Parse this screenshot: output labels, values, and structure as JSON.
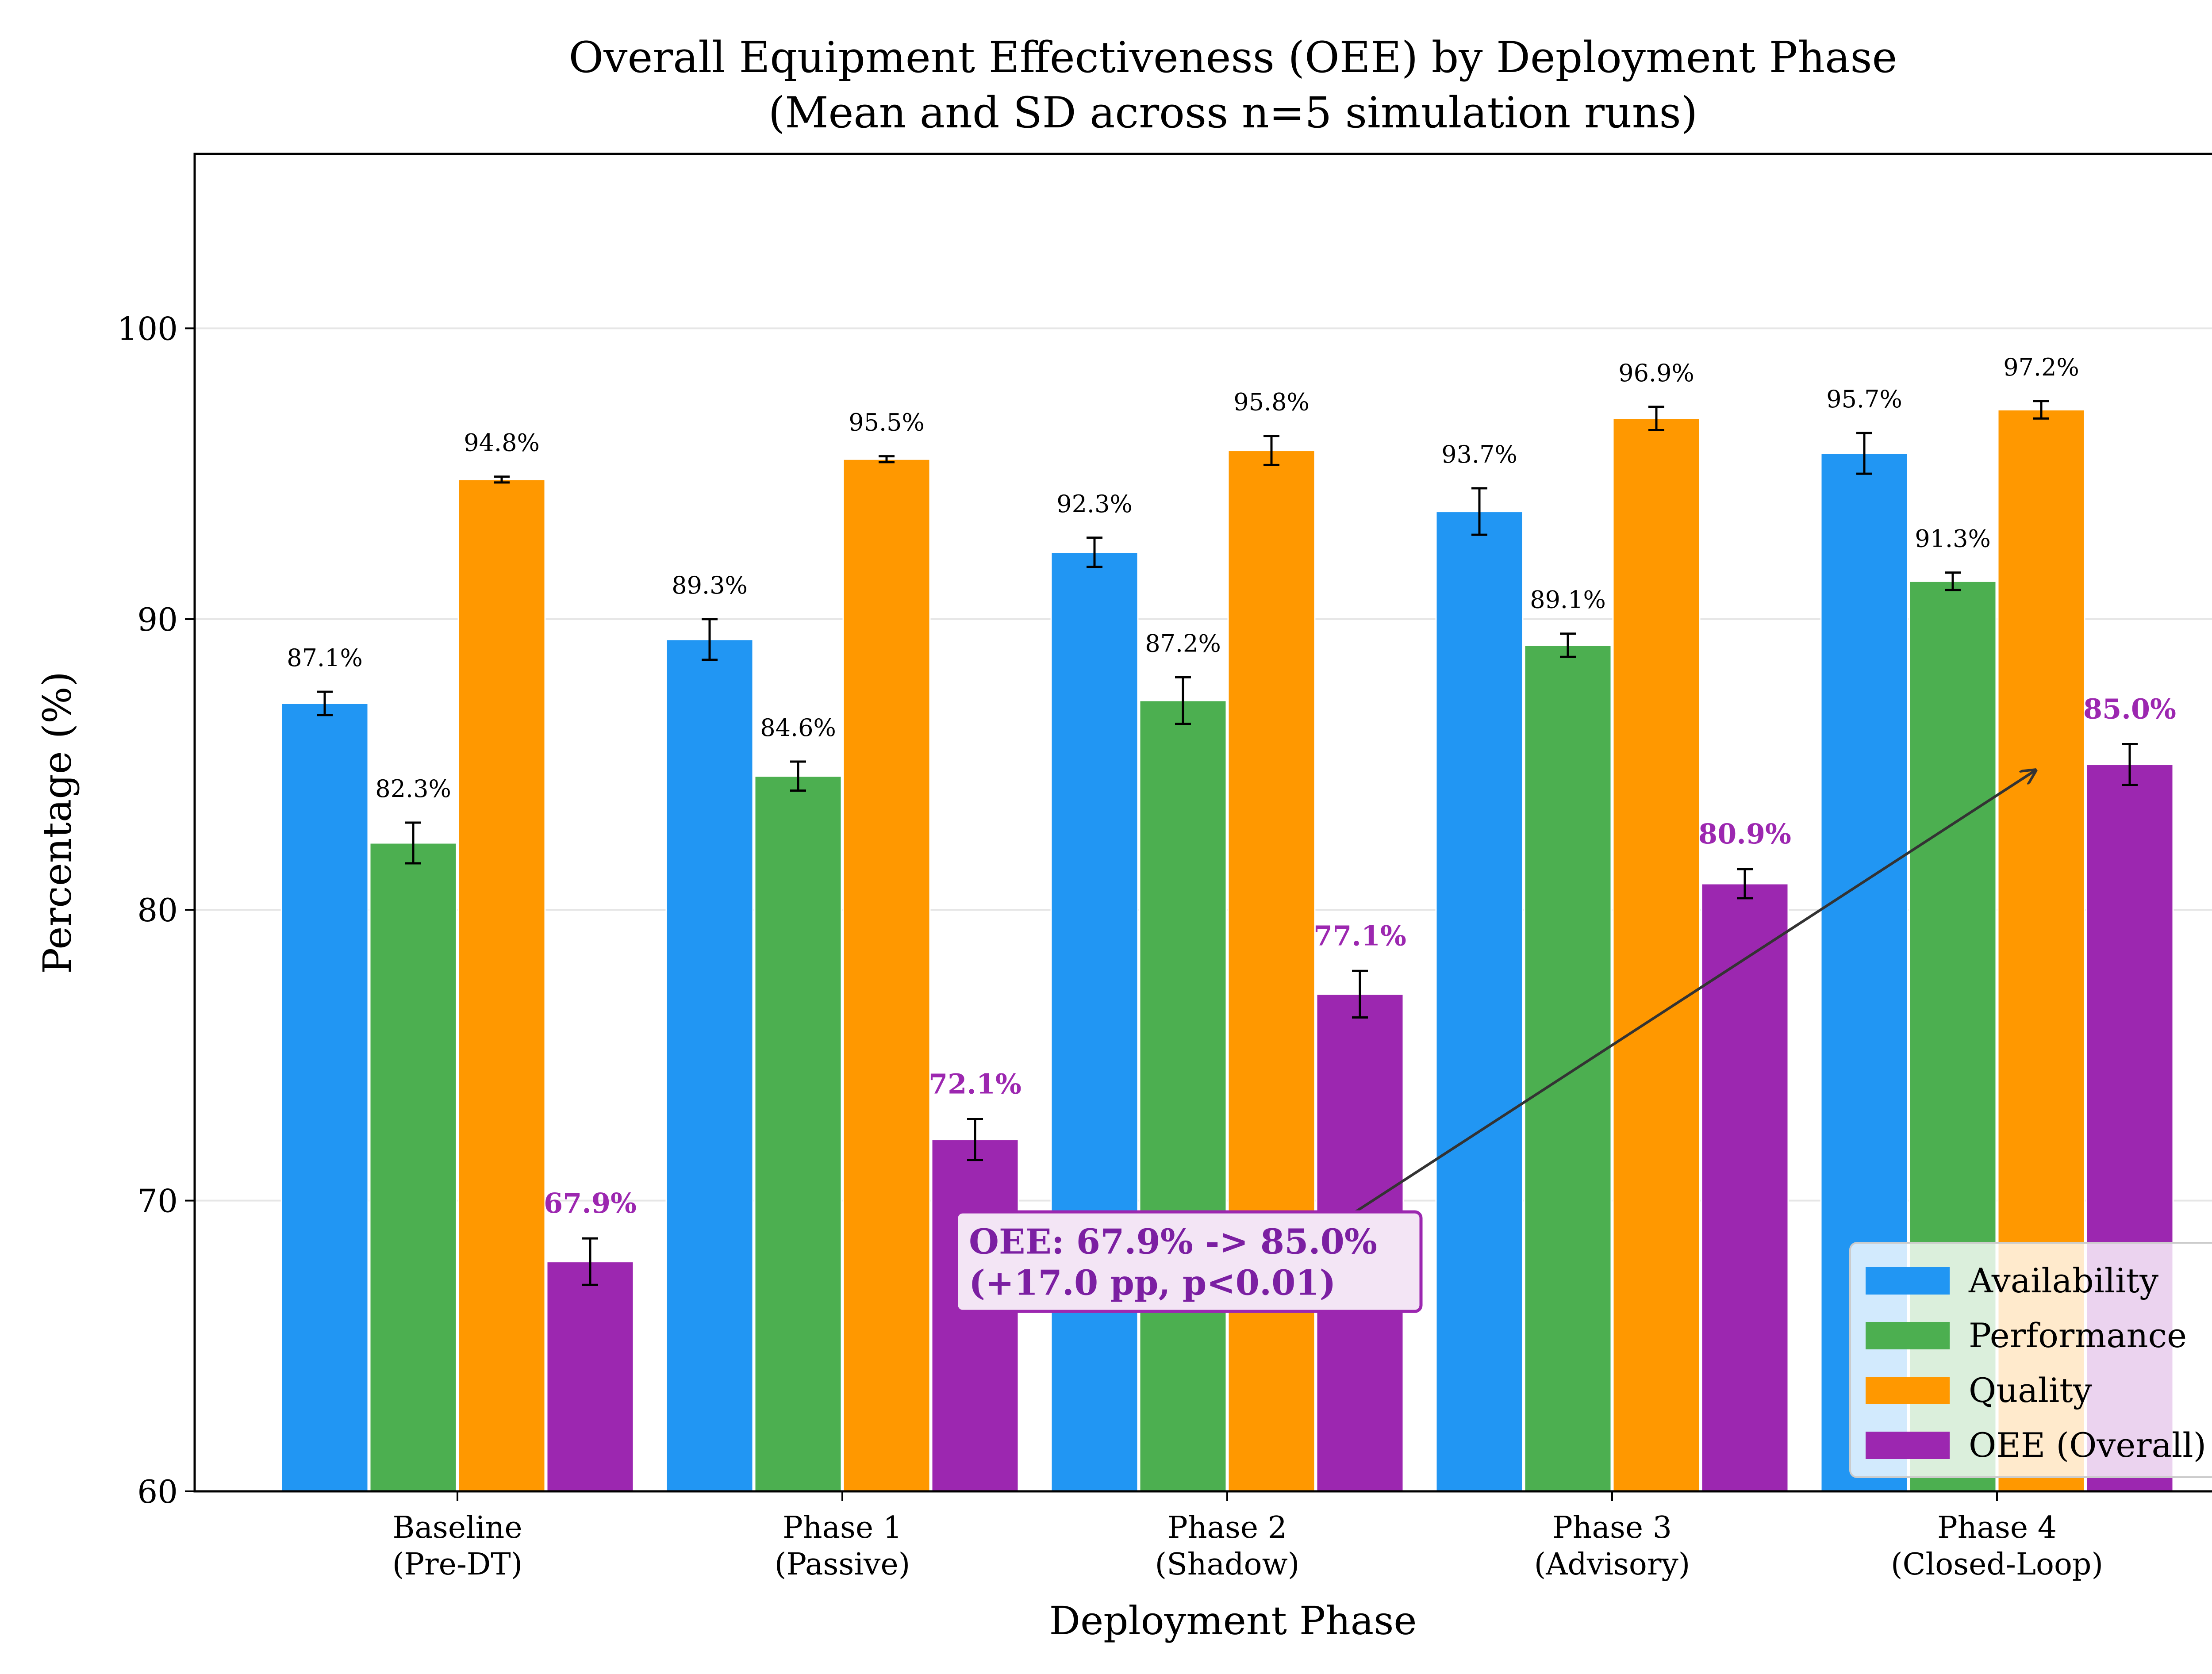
{
  "chart_data": {
    "type": "bar",
    "title": "Overall Equipment Effectiveness (OEE) by Deployment Phase",
    "subtitle": "(Mean and SD across n=5 simulation runs)",
    "xlabel": "Deployment Phase",
    "ylabel": "Percentage (%)",
    "ylim": [
      60,
      106
    ],
    "yticks": [
      "60",
      "70",
      "80",
      "90",
      "100"
    ],
    "grid": "horizontal",
    "legend_position": "lower-right",
    "categories": [
      {
        "line1": "Baseline",
        "line2": "(Pre-DT)"
      },
      {
        "line1": "Phase 1",
        "line2": "(Passive)"
      },
      {
        "line1": "Phase 2",
        "line2": "(Shadow)"
      },
      {
        "line1": "Phase 3",
        "line2": "(Advisory)"
      },
      {
        "line1": "Phase 4",
        "line2": "(Closed-Loop)"
      }
    ],
    "series": [
      {
        "name": "Availability",
        "color": "#2196F3",
        "values": [
          87.1,
          89.3,
          92.3,
          93.7,
          95.7
        ],
        "sd": [
          0.4,
          0.7,
          0.5,
          0.8,
          0.7
        ],
        "labels": [
          "87.1%",
          "89.3%",
          "92.3%",
          "93.7%",
          "95.7%"
        ]
      },
      {
        "name": "Performance",
        "color": "#4CAF50",
        "values": [
          82.3,
          84.6,
          87.2,
          89.1,
          91.3
        ],
        "sd": [
          0.7,
          0.5,
          0.8,
          0.4,
          0.3
        ],
        "labels": [
          "82.3%",
          "84.6%",
          "87.2%",
          "89.1%",
          "91.3%"
        ]
      },
      {
        "name": "Quality",
        "color": "#FF9800",
        "values": [
          94.8,
          95.5,
          95.8,
          96.9,
          97.2
        ],
        "sd": [
          0.1,
          0.1,
          0.5,
          0.4,
          0.3
        ],
        "labels": [
          "94.8%",
          "95.5%",
          "95.8%",
          "96.9%",
          "97.2%"
        ]
      },
      {
        "name": "OEE (Overall)",
        "color": "#9C27B0",
        "values": [
          67.9,
          72.1,
          77.1,
          80.9,
          85.0
        ],
        "sd": [
          0.8,
          0.7,
          0.8,
          0.5,
          0.7
        ],
        "labels": [
          "67.9%",
          "72.1%",
          "77.1%",
          "80.9%",
          "85.0%"
        ]
      }
    ],
    "annotation": {
      "line1": "OEE: 67.9% -> 85.0%",
      "line2": "(+17.0 pp, p<0.01)",
      "arrow_from": {
        "category": 2.25,
        "value": 68.9
      },
      "arrow_to": {
        "category": 4.1,
        "value": 84.8
      },
      "box_at": {
        "category": 1.9,
        "value": 67.9
      }
    }
  }
}
